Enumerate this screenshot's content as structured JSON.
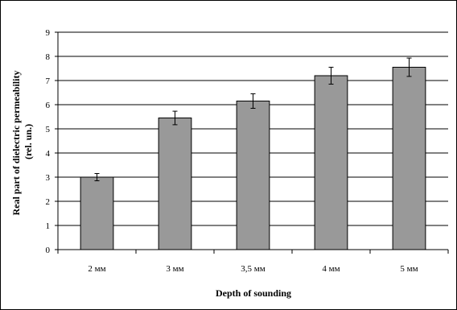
{
  "chart_data": {
    "type": "bar",
    "categories": [
      "2 мм",
      "3 мм",
      "3,5 мм",
      "4 мм",
      "5 мм"
    ],
    "values": [
      3.0,
      5.45,
      6.15,
      7.2,
      7.55
    ],
    "errors": [
      0.15,
      0.28,
      0.3,
      0.35,
      0.38
    ],
    "ylim": [
      0,
      9
    ],
    "yticks": [
      "0",
      "1",
      "2",
      "3",
      "4",
      "5",
      "6",
      "7",
      "8",
      "9"
    ],
    "xlabel": "Depth of sounding",
    "ylabel": "Real part of dielectric permeability (rel. un.)",
    "grid": true,
    "legend": "none",
    "colors": {
      "bar": "#999999",
      "bar_stroke": "#000000",
      "grid": "#000000"
    }
  }
}
